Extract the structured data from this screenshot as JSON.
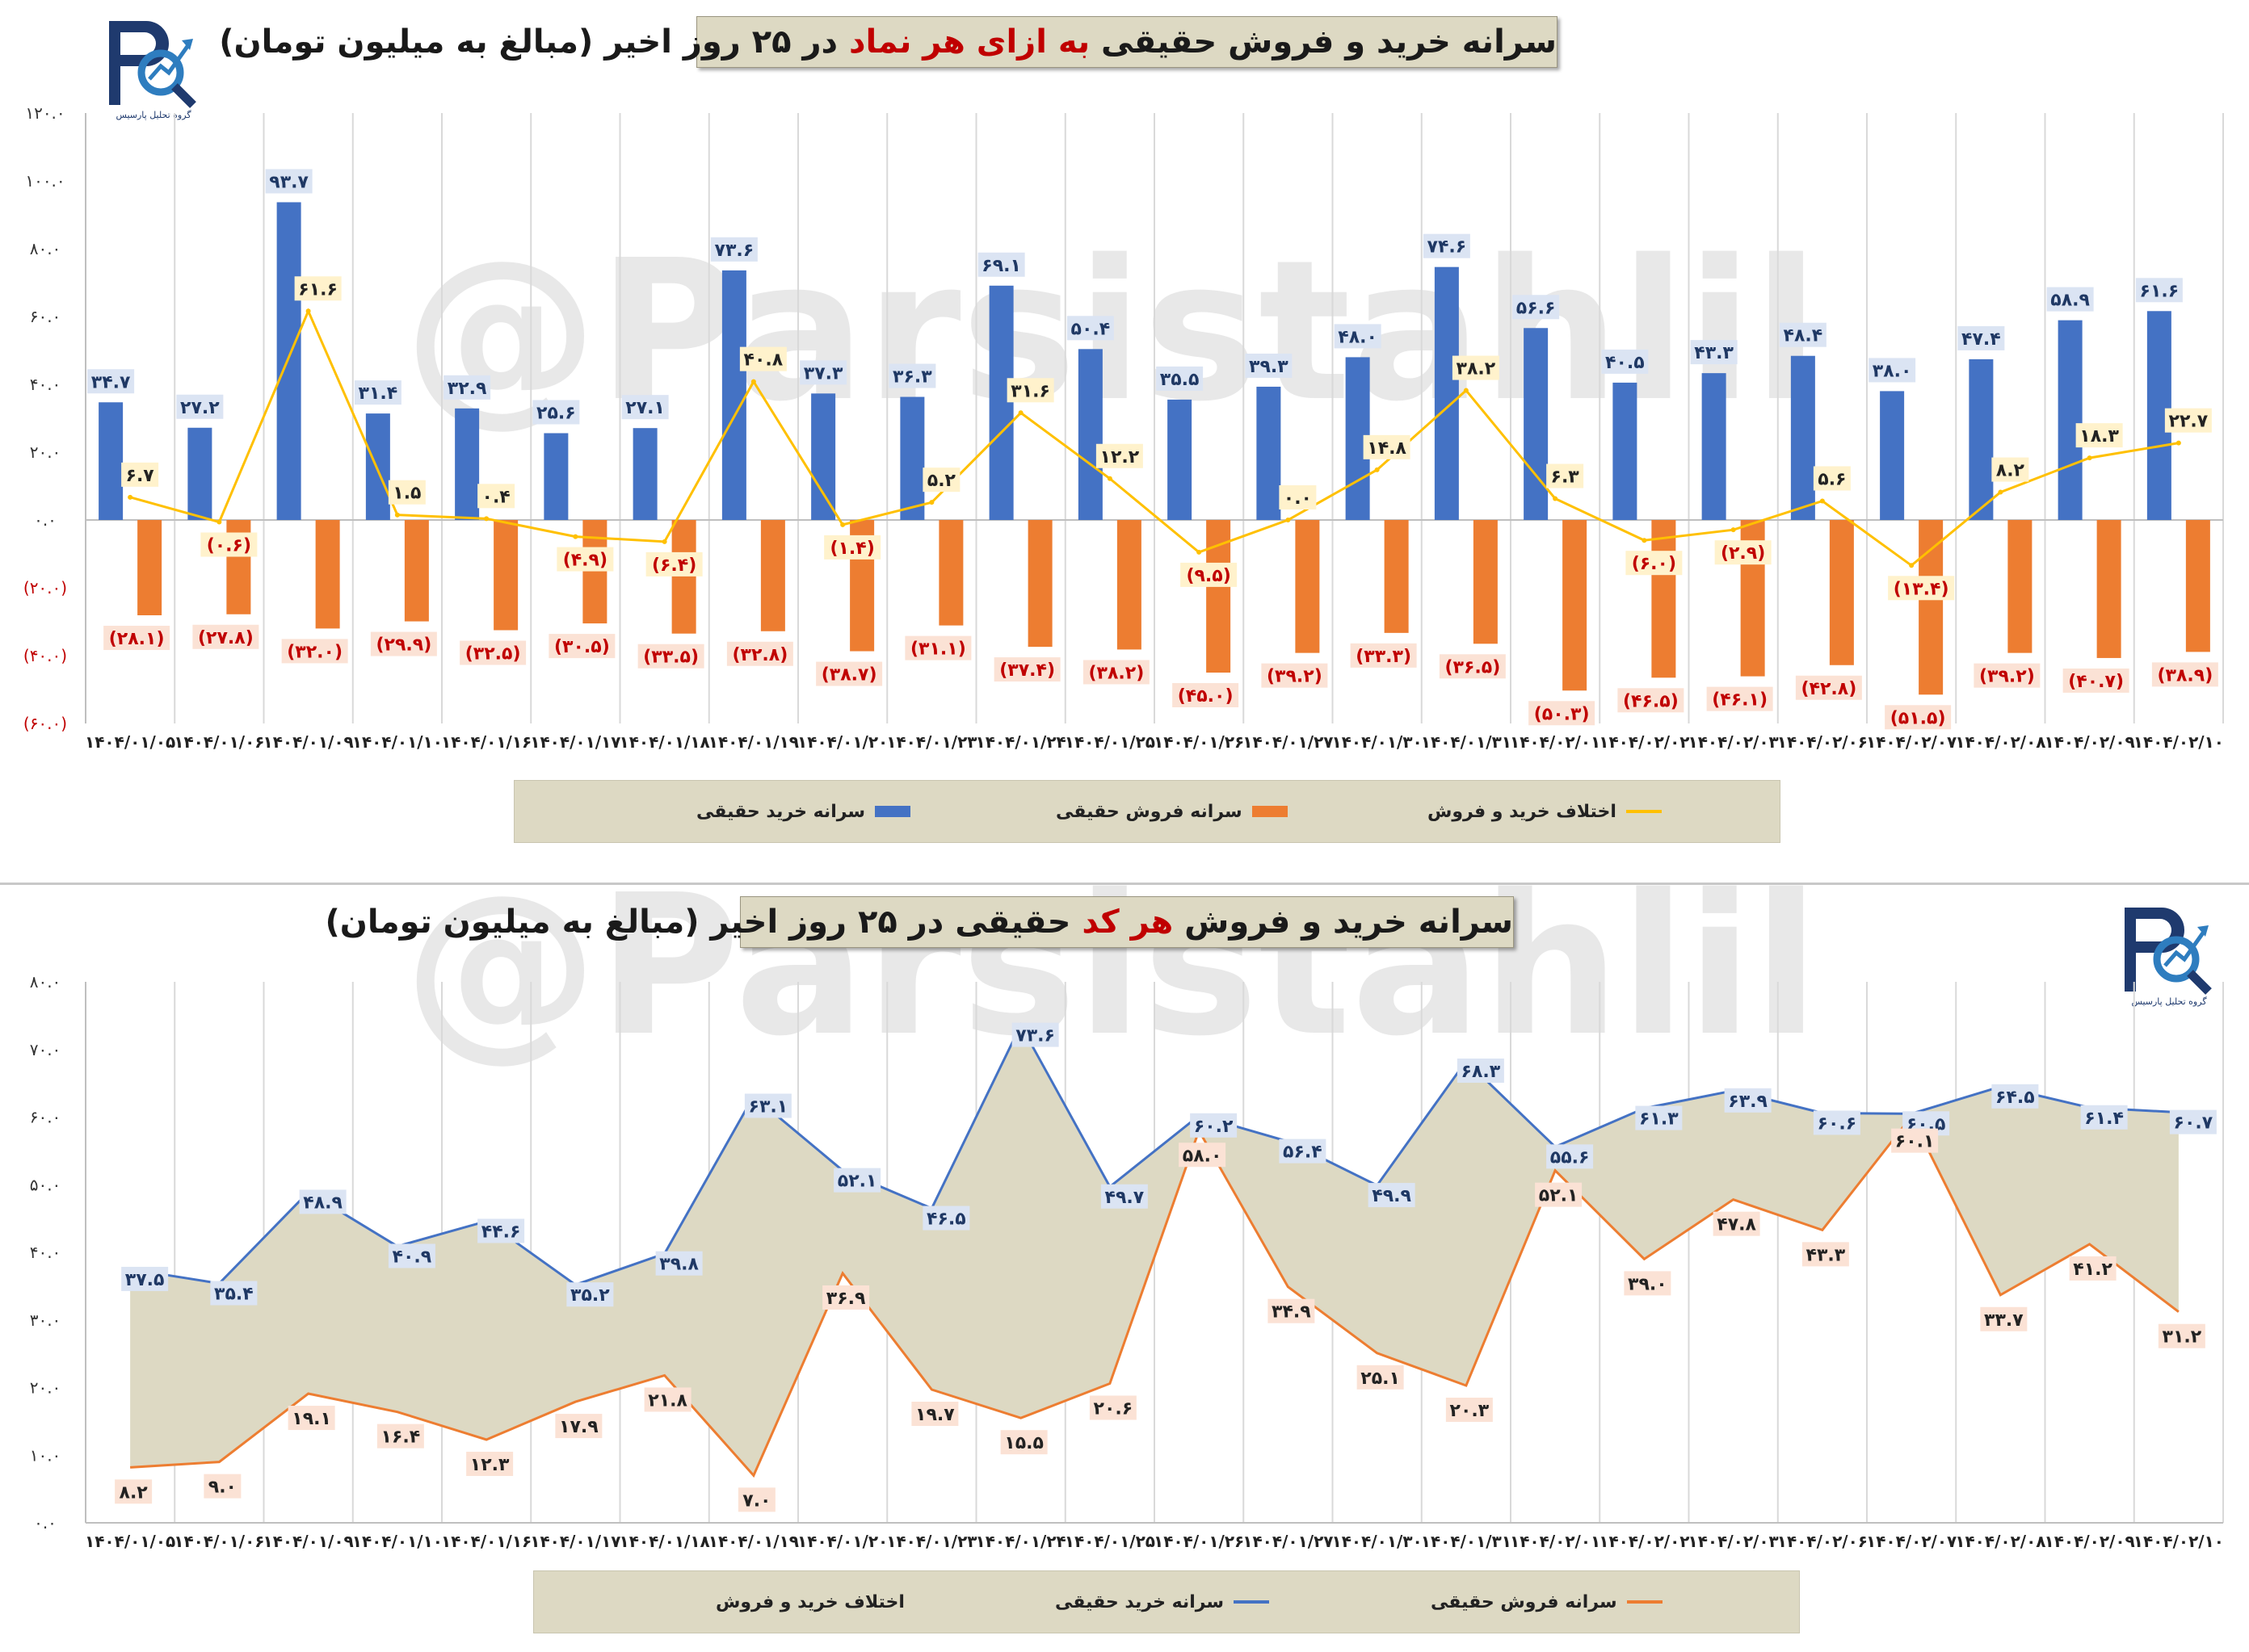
{
  "watermark": "@Parsistahlil",
  "logo": {
    "caption": "گروه تحلیل پارسیس"
  },
  "colors": {
    "buy": "#4472c4",
    "sell": "#ed7d31",
    "diff": "#ffc000",
    "area": "#ddd9c3",
    "negative_label": "#c00000",
    "title_bg": "#ddd9c3"
  },
  "panel1": {
    "title_pre": "سرانه خرید و فروش حقیقی ",
    "title_hl": "به ازای هر نماد",
    "title_post": " در ۲۵ روز اخیر (مبالغ به میلیون تومان)",
    "legend": {
      "buy": "سرانه خرید حقیقی",
      "sell": "سرانه فروش حقیقی",
      "diff": "اختلاف خرید و فروش"
    }
  },
  "panel2": {
    "title_pre": "سرانه خرید و فروش ",
    "title_hl": "هر کد",
    "title_post": " حقیقی در ۲۵ روز اخیر (مبالغ به میلیون تومان)",
    "legend": {
      "diff": "اختلاف خرید و فروش",
      "buy": "سرانه خرید حقیقی",
      "sell": "سرانه فروش حقیقی"
    }
  },
  "chart_data": [
    {
      "type": "bar",
      "title": "سرانه خرید و فروش حقیقی به ازای هر نماد در ۲۵ روز اخیر (مبالغ به میلیون تومان)",
      "categories": [
        "۱۴۰۴/۰۱/۰۵",
        "۱۴۰۴/۰۱/۰۶",
        "۱۴۰۴/۰۱/۰۹",
        "۱۴۰۴/۰۱/۱۰",
        "۱۴۰۴/۰۱/۱۶",
        "۱۴۰۴/۰۱/۱۷",
        "۱۴۰۴/۰۱/۱۸",
        "۱۴۰۴/۰۱/۱۹",
        "۱۴۰۴/۰۱/۲۰",
        "۱۴۰۴/۰۱/۲۳",
        "۱۴۰۴/۰۱/۲۴",
        "۱۴۰۴/۰۱/۲۵",
        "۱۴۰۴/۰۱/۲۶",
        "۱۴۰۴/۰۱/۲۷",
        "۱۴۰۴/۰۱/۳۰",
        "۱۴۰۴/۰۱/۳۱",
        "۱۴۰۴/۰۲/۰۱",
        "۱۴۰۴/۰۲/۰۲",
        "۱۴۰۴/۰۲/۰۳",
        "۱۴۰۴/۰۲/۰۶",
        "۱۴۰۴/۰۲/۰۷",
        "۱۴۰۴/۰۲/۰۸",
        "۱۴۰۴/۰۲/۰۹",
        "۱۴۰۴/۰۲/۱۰"
      ],
      "series": [
        {
          "name": "سرانه خرید حقیقی",
          "kind": "bar",
          "values": [
            34.7,
            27.2,
            93.7,
            31.4,
            32.9,
            25.6,
            27.1,
            73.6,
            37.3,
            36.3,
            69.1,
            50.4,
            35.5,
            39.3,
            48.0,
            74.6,
            56.6,
            40.5,
            43.3,
            48.4,
            38.0,
            47.4,
            58.9,
            61.6
          ],
          "labels": [
            "۳۴.۷",
            "۲۷.۲",
            "۹۳.۷",
            "۳۱.۴",
            "۳۲.۹",
            "۲۵.۶",
            "۲۷.۱",
            "۷۳.۶",
            "۳۷.۳",
            "۳۶.۳",
            "۶۹.۱",
            "۵۰.۴",
            "۳۵.۵",
            "۳۹.۳",
            "۴۸.۰",
            "۷۴.۶",
            "۵۶.۶",
            "۴۰.۵",
            "۴۳.۳",
            "۴۸.۴",
            "۳۸.۰",
            "۴۷.۴",
            "۵۸.۹",
            "۶۱.۶"
          ]
        },
        {
          "name": "سرانه فروش حقیقی",
          "kind": "bar",
          "values": [
            -28.1,
            -27.8,
            -32.0,
            -29.9,
            -32.5,
            -30.5,
            -33.5,
            -32.8,
            -38.7,
            -31.1,
            -37.4,
            -38.2,
            -45.0,
            -39.2,
            -33.3,
            -36.5,
            -50.3,
            -46.5,
            -46.1,
            -42.8,
            -51.5,
            -39.2,
            -40.7,
            -38.9
          ],
          "labels": [
            "(۲۸.۱)",
            "(۲۷.۸)",
            "(۳۲.۰)",
            "(۲۹.۹)",
            "(۳۲.۵)",
            "(۳۰.۵)",
            "(۳۳.۵)",
            "(۳۲.۸)",
            "(۳۸.۷)",
            "(۳۱.۱)",
            "(۳۷.۴)",
            "(۳۸.۲)",
            "(۴۵.۰)",
            "(۳۹.۲)",
            "(۳۳.۳)",
            "(۳۶.۵)",
            "(۵۰.۳)",
            "(۴۶.۵)",
            "(۴۶.۱)",
            "(۴۲.۸)",
            "(۵۱.۵)",
            "(۳۹.۲)",
            "(۴۰.۷)",
            "(۳۸.۹)"
          ]
        },
        {
          "name": "اختلاف خرید و فروش",
          "kind": "line",
          "values": [
            6.7,
            -0.6,
            61.6,
            1.5,
            0.4,
            -4.9,
            -6.4,
            40.8,
            -1.4,
            5.2,
            31.6,
            12.2,
            -9.5,
            0.0,
            14.8,
            38.2,
            6.3,
            -6.0,
            -2.9,
            5.6,
            -13.4,
            8.2,
            18.3,
            22.7
          ],
          "labels": [
            "۶.۷",
            "(۰.۶)",
            "۶۱.۶",
            "۱.۵",
            "۰.۴",
            "(۴.۹)",
            "(۶.۴)",
            "۴۰.۸",
            "(۱.۴)",
            "۵.۲",
            "۳۱.۶",
            "۱۲.۲",
            "(۹.۵)",
            "۰.۰",
            "۱۴.۸",
            "۳۸.۲",
            "۶.۳",
            "(۶.۰)",
            "(۲.۹)",
            "۵.۶",
            "(۱۳.۴)",
            "۸.۲",
            "۱۸.۳",
            "۲۲.۷"
          ]
        }
      ],
      "ylim": [
        -60,
        120
      ],
      "yticks": [
        -60,
        -40,
        -20,
        0,
        20,
        40,
        60,
        80,
        100,
        120
      ],
      "ytick_labels": [
        "(۶۰.۰)",
        "(۴۰.۰)",
        "(۲۰.۰)",
        "۰.۰",
        "۲۰.۰",
        "۴۰.۰",
        "۶۰.۰",
        "۸۰.۰",
        "۱۰۰.۰",
        "۱۲۰.۰"
      ],
      "grid": "vertical",
      "legend": "bottom"
    },
    {
      "type": "area",
      "title": "سرانه خرید و فروش هر کد حقیقی در ۲۵ روز اخیر (مبالغ به میلیون تومان)",
      "categories": [
        "۱۴۰۴/۰۱/۰۵",
        "۱۴۰۴/۰۱/۰۶",
        "۱۴۰۴/۰۱/۰۹",
        "۱۴۰۴/۰۱/۱۰",
        "۱۴۰۴/۰۱/۱۶",
        "۱۴۰۴/۰۱/۱۷",
        "۱۴۰۴/۰۱/۱۸",
        "۱۴۰۴/۰۱/۱۹",
        "۱۴۰۴/۰۱/۲۰",
        "۱۴۰۴/۰۱/۲۳",
        "۱۴۰۴/۰۱/۲۴",
        "۱۴۰۴/۰۱/۲۵",
        "۱۴۰۴/۰۱/۲۶",
        "۱۴۰۴/۰۱/۲۷",
        "۱۴۰۴/۰۱/۳۰",
        "۱۴۰۴/۰۱/۳۱",
        "۱۴۰۴/۰۲/۰۱",
        "۱۴۰۴/۰۲/۰۲",
        "۱۴۰۴/۰۲/۰۳",
        "۱۴۰۴/۰۲/۰۶",
        "۱۴۰۴/۰۲/۰۷",
        "۱۴۰۴/۰۲/۰۸",
        "۱۴۰۴/۰۲/۰۹",
        "۱۴۰۴/۰۲/۱۰"
      ],
      "series": [
        {
          "name": "سرانه خرید حقیقی",
          "kind": "line",
          "values": [
            37.5,
            35.4,
            48.9,
            40.9,
            44.6,
            35.2,
            39.8,
            63.1,
            52.1,
            46.5,
            73.6,
            49.7,
            60.2,
            56.4,
            49.9,
            68.3,
            55.6,
            61.3,
            63.9,
            60.6,
            60.5,
            64.5,
            61.4,
            60.7
          ],
          "labels": [
            "۳۷.۵",
            "۳۵.۴",
            "۴۸.۹",
            "۴۰.۹",
            "۴۴.۶",
            "۳۵.۲",
            "۳۹.۸",
            "۶۳.۱",
            "۵۲.۱",
            "۴۶.۵",
            "۷۳.۶",
            "۴۹.۷",
            "۶۰.۲",
            "۵۶.۴",
            "۴۹.۹",
            "۶۸.۳",
            "۵۵.۶",
            "۶۱.۳",
            "۶۳.۹",
            "۶۰.۶",
            "۶۰.۵",
            "۶۴.۵",
            "۶۱.۴",
            "۶۰.۷"
          ]
        },
        {
          "name": "سرانه فروش حقیقی",
          "kind": "line",
          "values": [
            8.2,
            9.0,
            19.1,
            16.4,
            12.3,
            17.9,
            21.8,
            7.0,
            36.9,
            19.7,
            15.5,
            20.6,
            58.0,
            34.9,
            25.1,
            20.3,
            52.1,
            39.0,
            47.8,
            43.3,
            60.1,
            33.7,
            41.2,
            31.2
          ],
          "labels": [
            "۸.۲",
            "۹.۰",
            "۱۹.۱",
            "۱۶.۴",
            "۱۲.۳",
            "۱۷.۹",
            "۲۱.۸",
            "۷.۰",
            "۳۶.۹",
            "۱۹.۷",
            "۱۵.۵",
            "۲۰.۶",
            "۵۸.۰",
            "۳۴.۹",
            "۲۵.۱",
            "۲۰.۳",
            "۵۲.۱",
            "۳۹.۰",
            "۴۷.۸",
            "۴۳.۳",
            "۶۰.۱",
            "۳۳.۷",
            "۴۱.۲",
            "۳۱.۲"
          ]
        },
        {
          "name": "اختلاف خرید و فروش",
          "kind": "area_between"
        }
      ],
      "ylim": [
        0,
        80
      ],
      "yticks": [
        0,
        10,
        20,
        30,
        40,
        50,
        60,
        70,
        80
      ],
      "ytick_labels": [
        "۰.۰",
        "۱۰.۰",
        "۲۰.۰",
        "۳۰.۰",
        "۴۰.۰",
        "۵۰.۰",
        "۶۰.۰",
        "۷۰.۰",
        "۸۰.۰"
      ],
      "grid": "vertical",
      "legend": "bottom"
    }
  ]
}
